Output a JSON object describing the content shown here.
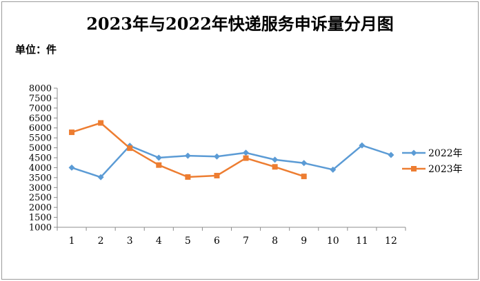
{
  "chart_data": {
    "type": "line",
    "title": "2023年与2022年快递服务申诉量分月图",
    "unit_label": "单位：件",
    "categories": [
      "1",
      "2",
      "3",
      "4",
      "5",
      "6",
      "7",
      "8",
      "9",
      "10",
      "11",
      "12"
    ],
    "y_ticks": [
      "8000",
      "7500",
      "7000",
      "6500",
      "6000",
      "5500",
      "5000",
      "4500",
      "4000",
      "3500",
      "3000",
      "2500",
      "2000",
      "1500",
      "1000"
    ],
    "ylim": [
      1000,
      8000
    ],
    "ytick_step": 500,
    "grid": false,
    "legend_position": "right",
    "series": [
      {
        "name": "2022年",
        "color": "#5b9bd5",
        "marker": "diamond",
        "values": [
          4000,
          3520,
          5100,
          4500,
          4600,
          4560,
          4750,
          4400,
          4230,
          3900,
          5120,
          4640
        ]
      },
      {
        "name": "2023年",
        "color": "#ed7d31",
        "marker": "square",
        "values": [
          5780,
          6250,
          4980,
          4130,
          3530,
          3600,
          4480,
          4040,
          3560,
          null,
          null,
          null
        ]
      }
    ]
  }
}
